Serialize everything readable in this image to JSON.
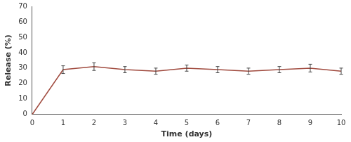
{
  "chart_data": {
    "type": "line",
    "x_label": "Time (days)",
    "y_label": "Release (%)",
    "x": [
      0,
      1,
      2,
      3,
      4,
      5,
      6,
      7,
      8,
      9,
      10
    ],
    "values": [
      0,
      29,
      31,
      29,
      28,
      30,
      29,
      28,
      29,
      30,
      28
    ],
    "errors": [
      null,
      2.5,
      2.5,
      2,
      2,
      2,
      2,
      2,
      2,
      2.5,
      2
    ],
    "color": "#a04a3e",
    "marker": "none",
    "line_style": "solid",
    "xlim": [
      0,
      10
    ],
    "xticks": [
      0,
      1,
      2,
      3,
      4,
      5,
      6,
      7,
      8,
      9,
      10
    ],
    "ylim": [
      0,
      70
    ],
    "yticks": [
      0,
      10,
      20,
      30,
      40,
      50,
      60,
      70
    ],
    "grid": false
  }
}
